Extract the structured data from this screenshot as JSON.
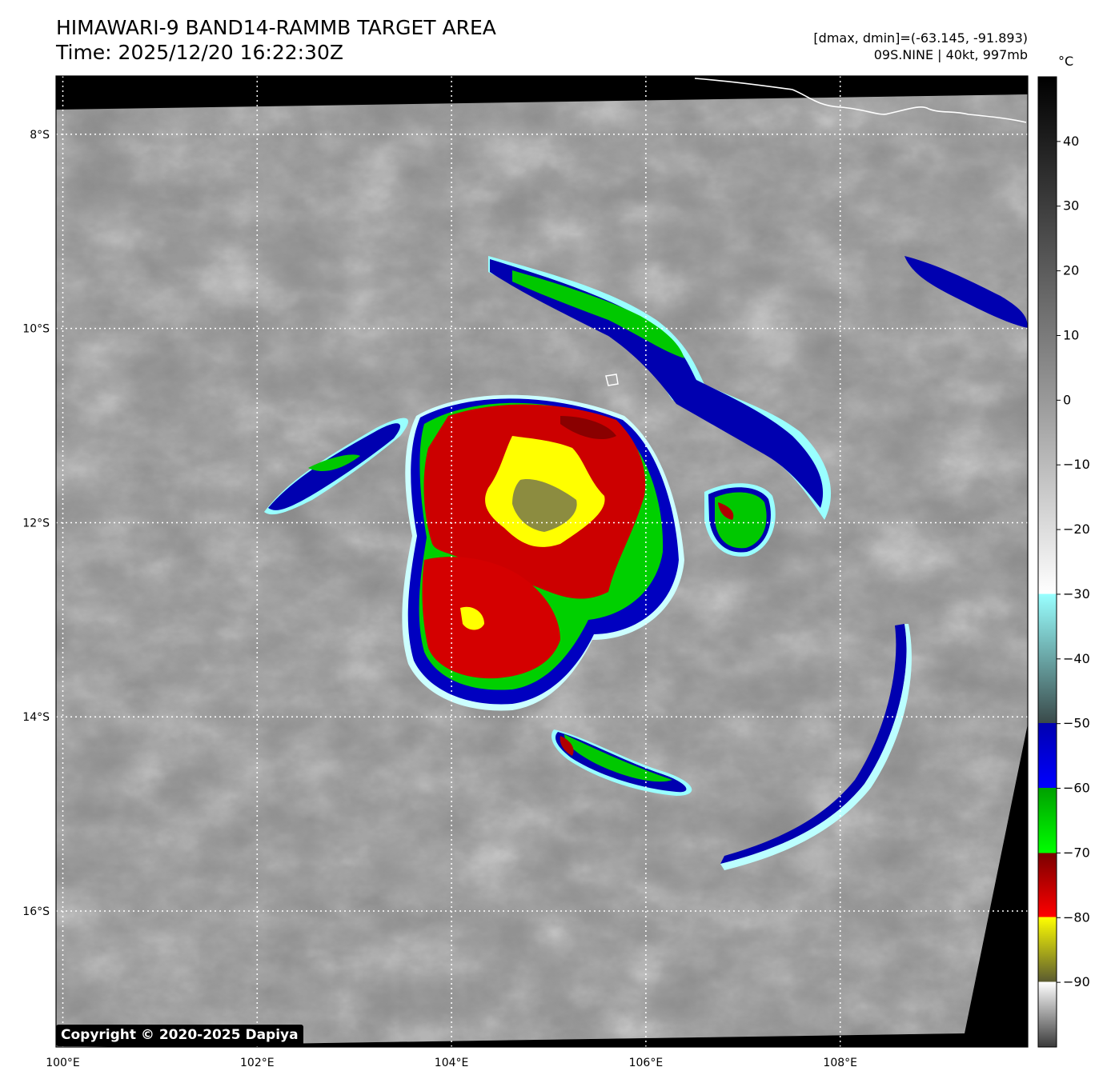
{
  "header": {
    "title": "HIMAWARI-9 BAND14-RAMMB TARGET AREA",
    "time": "Time: 2025/12/20 16:22:30Z",
    "range": "[dmax, dmin]=(-63.145, -91.893)",
    "storm": "09S.NINE | 40kt, 997mb"
  },
  "colorbar": {
    "unit": "°C",
    "ticks": [
      "40",
      "30",
      "20",
      "10",
      "0",
      "−10",
      "−20",
      "−30",
      "−40",
      "−50",
      "−60",
      "−70",
      "−80",
      "−90"
    ],
    "tick_values": [
      40,
      30,
      20,
      10,
      0,
      -10,
      -20,
      -30,
      -40,
      -50,
      -60,
      -70,
      -80,
      -90
    ],
    "range": [
      -100,
      50
    ],
    "colors": {
      "warm_top": "#000000",
      "zero": "#999999",
      "cold_white": "#ffffff",
      "cyan": "#99ffff",
      "grey_cyan": "#4d6b6b",
      "blue": "#0000b0",
      "green": "#00c800",
      "dark_red": "#7a0000",
      "red": "#e60000",
      "yellow": "#ffff00",
      "olive": "#5a5a30"
    }
  },
  "map": {
    "lon_labels": [
      "100°E",
      "102°E",
      "104°E",
      "106°E",
      "108°E"
    ],
    "lon_values": [
      100,
      102,
      104,
      106,
      108
    ],
    "lat_labels": [
      "8°S",
      "10°S",
      "12°S",
      "14°S",
      "16°S"
    ],
    "lat_values": [
      -8,
      -10,
      -12,
      -14,
      -16
    ],
    "lon_range": [
      99.93,
      109.93
    ],
    "lat_range": [
      -7.4,
      -17.4
    ],
    "gridlines": "dotted-white"
  },
  "copyright": "Copyright © 2020-2025 Dapiya"
}
